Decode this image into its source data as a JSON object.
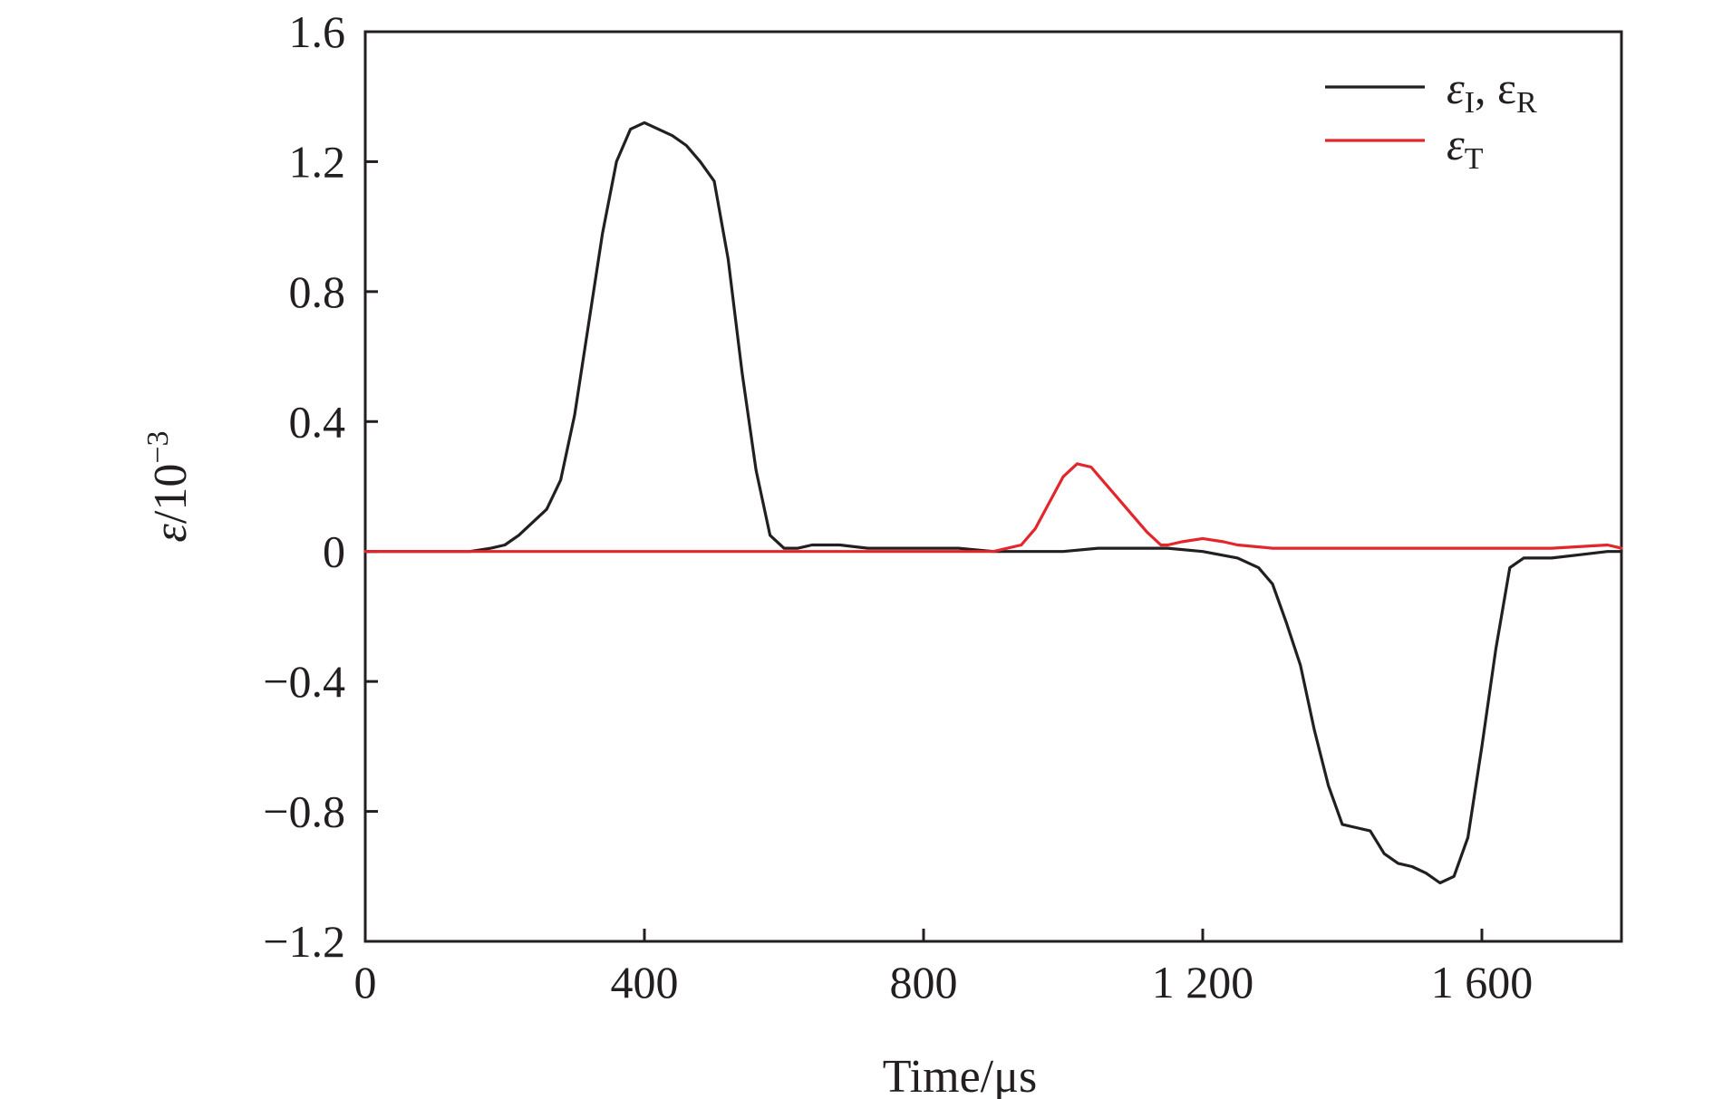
{
  "chart_data": {
    "type": "line",
    "title": "",
    "xlabel": "Time/μs",
    "ylabel_symbol": "ε",
    "ylabel_unit": "/10",
    "ylabel_exponent": "−3",
    "xlim": [
      0,
      1800
    ],
    "ylim": [
      -1.2,
      1.6
    ],
    "grid": false,
    "legend_position": "top-right",
    "x_ticks": [
      0,
      400,
      800,
      1200,
      1600
    ],
    "x_tick_labels": [
      "0",
      "400",
      "800",
      "1 200",
      "1 600"
    ],
    "y_ticks": [
      -1.2,
      -0.8,
      -0.4,
      0,
      0.4,
      0.8,
      1.2,
      1.6
    ],
    "y_tick_labels": [
      "−1.2",
      "−0.8",
      "−0.4",
      "0",
      "0.4",
      "0.8",
      "1.2",
      "1.6"
    ],
    "series": [
      {
        "legend_symbol": "ε",
        "legend_sub1": "I",
        "legend_sep": ", ε",
        "legend_sub2": "R",
        "color": "#231f20",
        "x": [
          0,
          100,
          150,
          180,
          200,
          220,
          240,
          260,
          280,
          300,
          320,
          340,
          360,
          380,
          400,
          420,
          440,
          460,
          480,
          500,
          520,
          540,
          560,
          580,
          600,
          620,
          640,
          680,
          720,
          780,
          850,
          900,
          950,
          1000,
          1050,
          1100,
          1150,
          1200,
          1250,
          1280,
          1300,
          1320,
          1340,
          1360,
          1380,
          1400,
          1420,
          1440,
          1460,
          1480,
          1500,
          1520,
          1540,
          1560,
          1580,
          1600,
          1620,
          1640,
          1660,
          1680,
          1700,
          1740,
          1780,
          1800
        ],
        "y": [
          0.0,
          0.0,
          0.0,
          0.01,
          0.02,
          0.05,
          0.09,
          0.13,
          0.22,
          0.42,
          0.7,
          0.98,
          1.2,
          1.3,
          1.32,
          1.3,
          1.28,
          1.25,
          1.2,
          1.14,
          0.9,
          0.55,
          0.25,
          0.05,
          0.01,
          0.01,
          0.02,
          0.02,
          0.01,
          0.01,
          0.01,
          0.0,
          0.0,
          0.0,
          0.01,
          0.01,
          0.01,
          0.0,
          -0.02,
          -0.05,
          -0.1,
          -0.22,
          -0.35,
          -0.55,
          -0.72,
          -0.84,
          -0.85,
          -0.86,
          -0.93,
          -0.96,
          -0.97,
          -0.99,
          -1.02,
          -1.0,
          -0.88,
          -0.6,
          -0.3,
          -0.05,
          -0.02,
          -0.02,
          -0.02,
          -0.01,
          0.0,
          0.0
        ]
      },
      {
        "legend_symbol": "ε",
        "legend_sub1": "T",
        "color": "#e3262b",
        "x": [
          0,
          200,
          400,
          600,
          800,
          900,
          940,
          960,
          980,
          1000,
          1020,
          1040,
          1060,
          1080,
          1100,
          1120,
          1140,
          1150,
          1170,
          1200,
          1230,
          1250,
          1300,
          1400,
          1500,
          1600,
          1700,
          1780,
          1800
        ],
        "y": [
          0.0,
          0.0,
          0.0,
          0.0,
          0.0,
          0.0,
          0.02,
          0.07,
          0.15,
          0.23,
          0.27,
          0.26,
          0.21,
          0.16,
          0.11,
          0.06,
          0.02,
          0.02,
          0.03,
          0.04,
          0.03,
          0.02,
          0.01,
          0.01,
          0.01,
          0.01,
          0.01,
          0.02,
          0.01
        ]
      }
    ]
  }
}
